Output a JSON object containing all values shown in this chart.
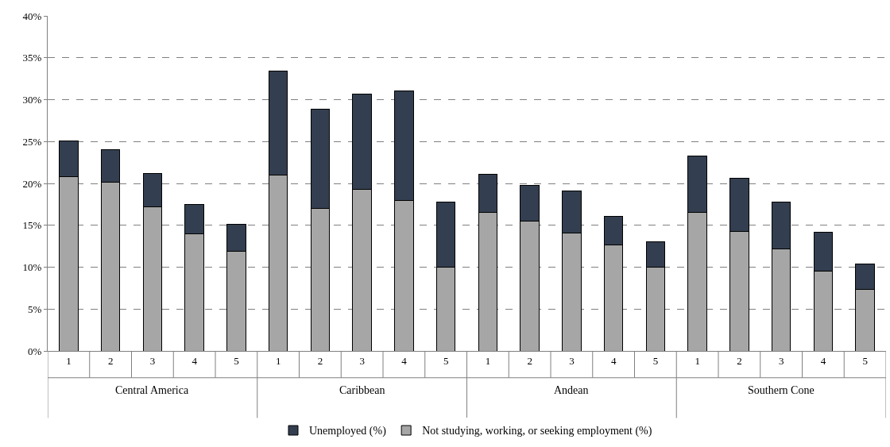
{
  "chart_data": {
    "type": "bar",
    "stacked": true,
    "categories": [
      "1",
      "2",
      "3",
      "4",
      "5",
      "1",
      "2",
      "3",
      "4",
      "5",
      "1",
      "2",
      "3",
      "4",
      "5",
      "1",
      "2",
      "3",
      "4",
      "5"
    ],
    "annotations": [
      "Central America",
      "Caribbean",
      "Andean",
      "Southern Cone"
    ],
    "series": [
      {
        "name": "Not studying, working, or seeking employment (%)",
        "color": "#a6a6a6",
        "values": [
          20.8,
          20.1,
          17.2,
          14.0,
          11.9,
          21.0,
          17.0,
          19.3,
          18.0,
          10.0,
          16.5,
          15.5,
          14.1,
          12.7,
          10.0,
          16.5,
          14.3,
          12.2,
          9.5,
          7.3
        ]
      },
      {
        "name": "Unemployed (%)",
        "color": "#333f50",
        "values": [
          4.3,
          3.9,
          4.0,
          3.5,
          3.2,
          12.4,
          11.9,
          11.4,
          13.0,
          7.8,
          4.6,
          4.3,
          5.0,
          3.4,
          3.0,
          6.8,
          6.3,
          5.6,
          4.7,
          3.1
        ]
      }
    ],
    "ylim": [
      0,
      40
    ],
    "yticks": [
      {
        "value": 0,
        "label": "0%"
      },
      {
        "value": 5,
        "label": "5%"
      },
      {
        "value": 10,
        "label": "10%"
      },
      {
        "value": 15,
        "label": "15%"
      },
      {
        "value": 20,
        "label": "20%"
      },
      {
        "value": 25,
        "label": "25%"
      },
      {
        "value": 30,
        "label": "30%"
      },
      {
        "value": 35,
        "label": "35%"
      },
      {
        "value": 40,
        "label": "40%"
      }
    ],
    "grid": "y",
    "legend": "bottom"
  }
}
